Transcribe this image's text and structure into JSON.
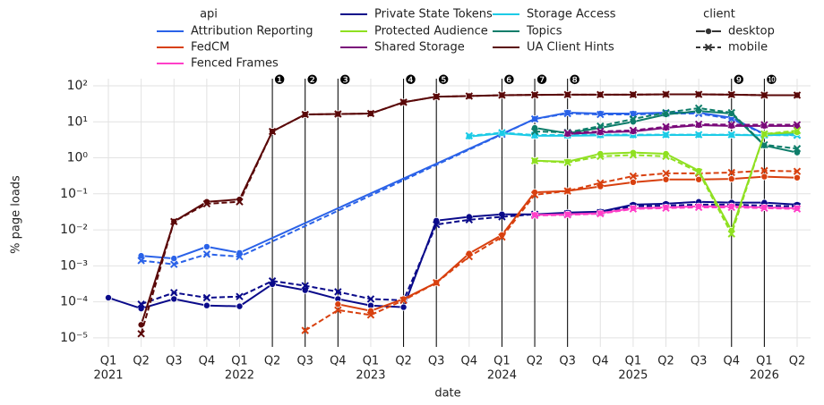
{
  "chart_data": {
    "type": "line",
    "x_label": "date",
    "y_label": "% page loads",
    "log_y": true,
    "grid": true,
    "categories": [
      "Q1",
      "Q2",
      "Q3",
      "Q4",
      "Q1",
      "Q2",
      "Q3",
      "Q4",
      "Q1",
      "Q2",
      "Q3",
      "Q4",
      "Q1",
      "Q2",
      "Q3",
      "Q4",
      "Q1",
      "Q2",
      "Q3",
      "Q4",
      "Q1",
      "Q2"
    ],
    "year_labels": [
      "2021",
      null,
      null,
      null,
      "2022",
      null,
      null,
      null,
      "2023",
      null,
      null,
      null,
      "2024",
      null,
      null,
      null,
      "2025",
      null,
      null,
      null,
      "2026",
      null
    ],
    "ylim": [
      5.6e-06,
      158
    ],
    "yticks": [
      {
        "value": 100,
        "label": "10²"
      },
      {
        "value": 10,
        "label": "10¹"
      },
      {
        "value": 1,
        "label": "10⁰"
      },
      {
        "value": 0.1,
        "label": "10⁻¹"
      },
      {
        "value": 0.01,
        "label": "10⁻²"
      },
      {
        "value": 0.001,
        "label": "10⁻³"
      },
      {
        "value": 0.0001,
        "label": "10⁻⁴"
      },
      {
        "value": 1e-05,
        "label": "10⁻⁵"
      }
    ],
    "legend": {
      "api_title": "api",
      "client_title": "client"
    },
    "apis": [
      {
        "name": "Attribution Reporting",
        "color": "#2a62e8"
      },
      {
        "name": "FedCM",
        "color": "#d8400f"
      },
      {
        "name": "Fenced Frames",
        "color": "#ff3fc8"
      },
      {
        "name": "Private State Tokens",
        "color": "#0a0a8a"
      },
      {
        "name": "Protected Audience",
        "color": "#8fe020"
      },
      {
        "name": "Shared Storage",
        "color": "#7a0a7a"
      },
      {
        "name": "Storage Access",
        "color": "#1ccbe6"
      },
      {
        "name": "Topics",
        "color": "#0e7d6a"
      },
      {
        "name": "UA Client Hints",
        "color": "#5a0808"
      }
    ],
    "clients": [
      {
        "name": "desktop",
        "marker": "circle",
        "dashed": false
      },
      {
        "name": "mobile",
        "marker": "x",
        "dashed": true
      }
    ],
    "series": [
      {
        "api": 0,
        "client": 0,
        "values": [
          null,
          0.0019,
          0.0016,
          0.0034,
          0.0023,
          null,
          null,
          null,
          null,
          null,
          null,
          null,
          4.6,
          12,
          18,
          17,
          17,
          18,
          18,
          13,
          4.6,
          4.6
        ]
      },
      {
        "api": 0,
        "client": 1,
        "values": [
          null,
          0.0014,
          0.0011,
          0.0021,
          0.0018,
          null,
          null,
          null,
          null,
          null,
          null,
          null,
          4.5,
          12,
          17,
          16,
          16,
          17,
          17,
          12,
          4.5,
          4.3
        ]
      },
      {
        "api": 3,
        "client": 0,
        "values": [
          0.00013,
          6.5e-05,
          0.00012,
          7.9e-05,
          7.5e-05,
          0.00031,
          0.00021,
          0.00012,
          7.9e-05,
          7.1e-05,
          0.018,
          0.023,
          0.027,
          0.027,
          0.03,
          0.032,
          0.05,
          0.053,
          0.06,
          0.057,
          0.057,
          0.05
        ]
      },
      {
        "api": 3,
        "client": 1,
        "values": [
          null,
          8.6e-05,
          0.00018,
          0.00013,
          0.00014,
          0.00038,
          0.00028,
          0.00019,
          0.00012,
          0.00011,
          0.014,
          0.019,
          0.023,
          0.027,
          0.028,
          0.03,
          0.045,
          0.047,
          0.05,
          0.05,
          0.047,
          0.045
        ]
      },
      {
        "api": 1,
        "client": 0,
        "values": [
          null,
          null,
          null,
          null,
          null,
          null,
          null,
          8.6e-05,
          5.6e-05,
          0.00012,
          0.00034,
          0.0022,
          0.0072,
          0.11,
          0.12,
          0.16,
          0.21,
          0.25,
          0.25,
          0.26,
          0.3,
          0.28
        ]
      },
      {
        "api": 1,
        "client": 1,
        "values": [
          null,
          null,
          null,
          null,
          null,
          null,
          1.6e-05,
          5.9e-05,
          4.3e-05,
          0.00011,
          0.00034,
          0.0018,
          0.0063,
          0.094,
          0.12,
          0.2,
          0.31,
          0.37,
          0.37,
          0.39,
          0.44,
          0.42
        ]
      },
      {
        "api": 2,
        "client": 0,
        "values": [
          null,
          null,
          null,
          null,
          null,
          null,
          null,
          null,
          null,
          null,
          null,
          null,
          null,
          0.026,
          0.027,
          0.029,
          0.04,
          0.042,
          0.045,
          0.045,
          0.042,
          0.04
        ]
      },
      {
        "api": 2,
        "client": 1,
        "values": [
          null,
          null,
          null,
          null,
          null,
          null,
          null,
          null,
          null,
          null,
          null,
          null,
          null,
          0.025,
          0.026,
          0.028,
          0.038,
          0.04,
          0.042,
          0.042,
          0.04,
          0.038
        ]
      },
      {
        "api": 6,
        "client": 0,
        "values": [
          null,
          null,
          null,
          null,
          null,
          null,
          null,
          null,
          null,
          null,
          null,
          3.9,
          4.8,
          4.1,
          4.1,
          4.2,
          4.2,
          4.3,
          4.3,
          4.3,
          4.2,
          4.5
        ]
      },
      {
        "api": 6,
        "client": 1,
        "values": [
          null,
          null,
          null,
          null,
          null,
          null,
          null,
          null,
          null,
          null,
          null,
          4.1,
          5.0,
          4.3,
          4.3,
          4.4,
          4.4,
          4.4,
          4.4,
          4.4,
          4.3,
          4.2
        ]
      },
      {
        "api": 7,
        "client": 0,
        "values": [
          null,
          null,
          null,
          null,
          null,
          null,
          null,
          null,
          null,
          null,
          null,
          null,
          null,
          6.8,
          4.8,
          6.8,
          10,
          16,
          20,
          17,
          2.2,
          1.4
        ]
      },
      {
        "api": 7,
        "client": 1,
        "values": [
          null,
          null,
          null,
          null,
          null,
          null,
          null,
          null,
          null,
          null,
          null,
          null,
          null,
          5.4,
          5.1,
          7.6,
          12,
          18,
          24,
          18,
          2.3,
          1.8
        ]
      },
      {
        "api": 5,
        "client": 0,
        "values": [
          null,
          null,
          null,
          null,
          null,
          null,
          null,
          null,
          null,
          null,
          null,
          null,
          null,
          null,
          4.6,
          5.1,
          5.4,
          6.8,
          8.1,
          7.7,
          7.7,
          7.7
        ]
      },
      {
        "api": 5,
        "client": 1,
        "values": [
          null,
          null,
          null,
          null,
          null,
          null,
          null,
          null,
          null,
          null,
          null,
          null,
          null,
          null,
          4.9,
          5.4,
          5.8,
          7.3,
          8.6,
          8.3,
          8.3,
          8.3
        ]
      },
      {
        "api": 4,
        "client": 0,
        "values": [
          null,
          null,
          null,
          null,
          null,
          null,
          null,
          null,
          null,
          null,
          null,
          null,
          null,
          0.83,
          0.78,
          1.3,
          1.4,
          1.3,
          0.44,
          0.0096,
          4.6,
          5.1
        ]
      },
      {
        "api": 4,
        "client": 1,
        "values": [
          null,
          null,
          null,
          null,
          null,
          null,
          null,
          null,
          null,
          null,
          null,
          null,
          null,
          0.83,
          0.74,
          1.1,
          1.2,
          1.1,
          0.4,
          0.0077,
          4.6,
          5.7
        ]
      },
      {
        "api": 8,
        "client": 0,
        "values": [
          null,
          2.3e-05,
          0.017,
          0.06,
          0.07,
          5.4,
          16,
          16.5,
          17,
          35,
          50,
          52,
          55,
          56,
          57,
          57,
          57,
          58,
          58,
          57,
          55,
          55
        ]
      },
      {
        "api": 8,
        "client": 1,
        "values": [
          null,
          1.3e-05,
          0.017,
          0.053,
          0.06,
          5.4,
          16,
          16.5,
          17,
          35,
          50,
          52,
          55,
          56,
          57,
          57,
          57,
          58,
          58,
          57,
          55,
          55
        ]
      }
    ],
    "annotations": [
      {
        "x": 5,
        "label": "❶"
      },
      {
        "x": 6,
        "label": "❷"
      },
      {
        "x": 7,
        "label": "❸"
      },
      {
        "x": 9,
        "label": "❹"
      },
      {
        "x": 10,
        "label": "❺"
      },
      {
        "x": 12,
        "label": "❻"
      },
      {
        "x": 13,
        "label": "❼"
      },
      {
        "x": 14,
        "label": "❽"
      },
      {
        "x": 19,
        "label": "❾"
      },
      {
        "x": 20,
        "label": "❿"
      }
    ]
  }
}
